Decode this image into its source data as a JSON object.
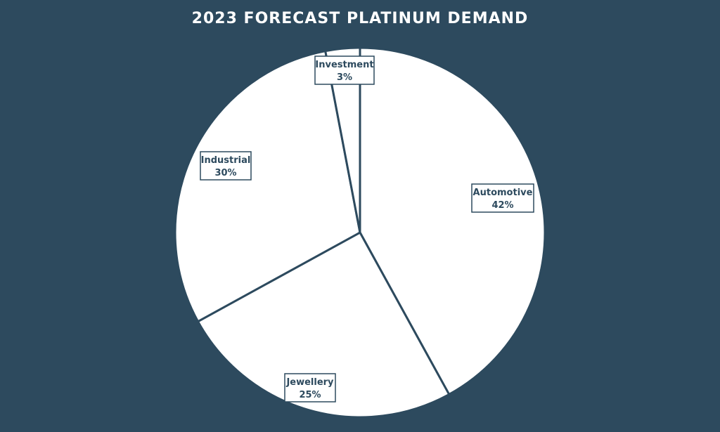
{
  "chart_data": {
    "type": "pie",
    "title": "2023 FORECAST PLATINUM DEMAND",
    "slices": [
      {
        "label": "Automotive",
        "value": 42,
        "display": "42%"
      },
      {
        "label": "Jewellery",
        "value": 25,
        "display": "25%"
      },
      {
        "label": "Industrial",
        "value": 30,
        "display": "30%"
      },
      {
        "label": "Investment",
        "value": 3,
        "display": "3%"
      }
    ],
    "start": "12 o'clock",
    "direction": "clockwise",
    "legend": "none"
  },
  "colors": {
    "background": "#2d4a5e",
    "slice_fill": "#ffffff",
    "slice_stroke": "#2d4a5e",
    "label_text": "#2d4a5e"
  }
}
